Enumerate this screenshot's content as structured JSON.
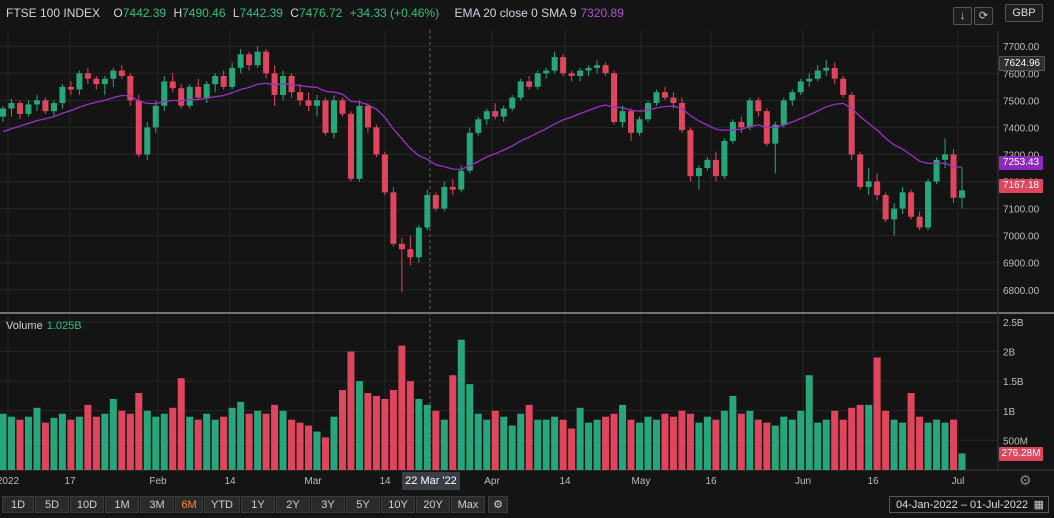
{
  "legend": {
    "symbol": "FTSE 100 INDEX",
    "o_label": "O",
    "o_value": "7442.39",
    "h_label": "H",
    "h_value": "7490.46",
    "l_label": "L",
    "l_value": "7442.39",
    "c_label": "C",
    "c_value": "7476.72",
    "change": "+34.33 (+0.46%)",
    "indicator_label": "EMA 20 close 0 SMA 9",
    "indicator_value": "7320.89"
  },
  "volume_legend": {
    "label": "Volume",
    "value": "1.025B"
  },
  "toolbar": {
    "download_icon": "↓",
    "refresh_icon": "⟳",
    "currency": "GBP"
  },
  "price_tags": {
    "last": "7624.96",
    "ema": "7253.43",
    "close": "7167.18",
    "volume": "276.28M"
  },
  "crosshair_date": "22 Mar '22",
  "range_buttons": [
    "1D",
    "5D",
    "10D",
    "1M",
    "3M",
    "6M",
    "YTD",
    "1Y",
    "2Y",
    "3Y",
    "5Y",
    "10Y",
    "20Y",
    "Max"
  ],
  "active_range": "6M",
  "settings_icon": "⚙",
  "date_range": {
    "text": "04-Jan-2022  –  01-Jul-2022",
    "calendar_icon": "▦"
  },
  "colors": {
    "up": "#26a67a",
    "down": "#e0455e",
    "ema": "#9b30c8",
    "grid": "#262626",
    "bg": "#141414"
  },
  "chart_data": {
    "type": "candlestick",
    "price_axis": {
      "ticks": [
        "7700.00",
        "7600.00",
        "7500.00",
        "7400.00",
        "7300.00",
        "7200.00",
        "7100.00",
        "7000.00",
        "6900.00",
        "6800.00"
      ],
      "ylim": [
        6740,
        7760
      ]
    },
    "volume_axis": {
      "ticks": [
        "2.5B",
        "2B",
        "1.5B",
        "1B",
        "500M"
      ],
      "ylim": [
        0,
        2.6
      ]
    },
    "x_ticks": [
      "2022",
      "17",
      "Feb",
      "14",
      "Mar",
      "14",
      "Apr",
      "14",
      "May",
      "16",
      "Jun",
      "16",
      "Jul"
    ],
    "candles": [
      [
        7440,
        7480,
        7420,
        7470,
        0.95
      ],
      [
        7470,
        7505,
        7440,
        7490,
        0.9
      ],
      [
        7490,
        7500,
        7430,
        7450,
        0.85
      ],
      [
        7450,
        7500,
        7440,
        7485,
        0.9
      ],
      [
        7485,
        7520,
        7460,
        7500,
        1.05
      ],
      [
        7500,
        7510,
        7450,
        7460,
        0.8
      ],
      [
        7460,
        7500,
        7440,
        7490,
        0.88
      ],
      [
        7490,
        7560,
        7470,
        7550,
        0.95
      ],
      [
        7550,
        7570,
        7520,
        7540,
        0.85
      ],
      [
        7540,
        7610,
        7520,
        7600,
        0.9
      ],
      [
        7600,
        7620,
        7560,
        7580,
        1.1
      ],
      [
        7580,
        7590,
        7540,
        7560,
        0.9
      ],
      [
        7560,
        7590,
        7520,
        7580,
        0.95
      ],
      [
        7580,
        7620,
        7550,
        7610,
        1.2
      ],
      [
        7610,
        7630,
        7580,
        7590,
        1.0
      ],
      [
        7590,
        7600,
        7480,
        7500,
        0.95
      ],
      [
        7500,
        7520,
        7290,
        7300,
        1.3
      ],
      [
        7300,
        7420,
        7280,
        7400,
        1.0
      ],
      [
        7400,
        7500,
        7380,
        7480,
        0.9
      ],
      [
        7480,
        7590,
        7460,
        7570,
        0.95
      ],
      [
        7570,
        7600,
        7530,
        7545,
        1.05
      ],
      [
        7545,
        7560,
        7470,
        7480,
        1.55
      ],
      [
        7480,
        7560,
        7470,
        7550,
        0.9
      ],
      [
        7550,
        7580,
        7500,
        7510,
        0.85
      ],
      [
        7510,
        7570,
        7490,
        7560,
        0.95
      ],
      [
        7560,
        7600,
        7530,
        7590,
        0.85
      ],
      [
        7590,
        7610,
        7540,
        7550,
        0.9
      ],
      [
        7550,
        7640,
        7540,
        7620,
        1.05
      ],
      [
        7620,
        7690,
        7600,
        7670,
        1.15
      ],
      [
        7670,
        7680,
        7610,
        7630,
        0.95
      ],
      [
        7630,
        7700,
        7620,
        7680,
        1.0
      ],
      [
        7680,
        7690,
        7580,
        7600,
        0.95
      ],
      [
        7600,
        7630,
        7480,
        7520,
        1.1
      ],
      [
        7520,
        7610,
        7500,
        7590,
        1.0
      ],
      [
        7590,
        7600,
        7510,
        7530,
        0.85
      ],
      [
        7530,
        7560,
        7480,
        7500,
        0.8
      ],
      [
        7500,
        7530,
        7460,
        7480,
        0.75
      ],
      [
        7480,
        7520,
        7440,
        7500,
        0.65
      ],
      [
        7500,
        7510,
        7370,
        7380,
        0.55
      ],
      [
        7380,
        7520,
        7360,
        7500,
        0.9
      ],
      [
        7500,
        7510,
        7440,
        7450,
        1.35
      ],
      [
        7450,
        7460,
        7200,
        7210,
        2.0
      ],
      [
        7210,
        7500,
        7200,
        7480,
        1.5
      ],
      [
        7480,
        7490,
        7380,
        7400,
        1.3
      ],
      [
        7400,
        7410,
        7290,
        7300,
        1.25
      ],
      [
        7300,
        7310,
        7150,
        7160,
        1.2
      ],
      [
        7160,
        7180,
        6960,
        6970,
        1.35
      ],
      [
        6970,
        6990,
        6790,
        6950,
        2.1
      ],
      [
        6950,
        7000,
        6890,
        6920,
        1.5
      ],
      [
        6920,
        7040,
        6900,
        7030,
        1.2
      ],
      [
        7030,
        7170,
        7020,
        7150,
        1.1
      ],
      [
        7150,
        7160,
        7090,
        7100,
        1.0
      ],
      [
        7100,
        7200,
        7090,
        7180,
        0.85
      ],
      [
        7180,
        7210,
        7150,
        7170,
        1.6
      ],
      [
        7170,
        7260,
        7160,
        7240,
        2.2
      ],
      [
        7240,
        7400,
        7230,
        7380,
        1.45
      ],
      [
        7380,
        7440,
        7370,
        7430,
        0.95
      ],
      [
        7430,
        7470,
        7410,
        7460,
        0.85
      ],
      [
        7460,
        7490,
        7430,
        7440,
        1.0
      ],
      [
        7440,
        7480,
        7420,
        7470,
        0.9
      ],
      [
        7470,
        7520,
        7460,
        7510,
        0.75
      ],
      [
        7510,
        7580,
        7500,
        7570,
        0.95
      ],
      [
        7570,
        7590,
        7540,
        7550,
        1.1
      ],
      [
        7550,
        7610,
        7540,
        7600,
        0.85
      ],
      [
        7600,
        7620,
        7580,
        7610,
        0.85
      ],
      [
        7610,
        7680,
        7600,
        7660,
        0.9
      ],
      [
        7660,
        7670,
        7590,
        7600,
        0.85
      ],
      [
        7600,
        7610,
        7570,
        7590,
        0.7
      ],
      [
        7590,
        7620,
        7570,
        7610,
        1.05
      ],
      [
        7610,
        7630,
        7590,
        7620,
        0.8
      ],
      [
        7620,
        7650,
        7600,
        7630,
        0.85
      ],
      [
        7630,
        7640,
        7590,
        7600,
        0.9
      ],
      [
        7600,
        7610,
        7410,
        7420,
        0.95
      ],
      [
        7420,
        7480,
        7400,
        7460,
        1.1
      ],
      [
        7460,
        7470,
        7350,
        7380,
        0.85
      ],
      [
        7380,
        7440,
        7370,
        7430,
        0.8
      ],
      [
        7430,
        7500,
        7420,
        7490,
        0.9
      ],
      [
        7490,
        7540,
        7480,
        7530,
        0.85
      ],
      [
        7530,
        7550,
        7500,
        7510,
        0.95
      ],
      [
        7510,
        7530,
        7470,
        7490,
        0.9
      ],
      [
        7490,
        7510,
        7380,
        7390,
        1.0
      ],
      [
        7390,
        7400,
        7200,
        7220,
        0.95
      ],
      [
        7220,
        7260,
        7170,
        7250,
        0.8
      ],
      [
        7250,
        7290,
        7240,
        7280,
        0.9
      ],
      [
        7280,
        7310,
        7200,
        7220,
        0.85
      ],
      [
        7220,
        7360,
        7210,
        7350,
        1.0
      ],
      [
        7350,
        7430,
        7340,
        7420,
        1.25
      ],
      [
        7420,
        7440,
        7380,
        7400,
        0.95
      ],
      [
        7400,
        7510,
        7390,
        7500,
        1.0
      ],
      [
        7500,
        7510,
        7440,
        7460,
        0.85
      ],
      [
        7460,
        7470,
        7330,
        7340,
        0.8
      ],
      [
        7340,
        7420,
        7230,
        7410,
        0.75
      ],
      [
        7410,
        7510,
        7400,
        7500,
        0.9
      ],
      [
        7500,
        7540,
        7480,
        7530,
        0.85
      ],
      [
        7530,
        7580,
        7520,
        7570,
        1.0
      ],
      [
        7570,
        7600,
        7550,
        7580,
        1.6
      ],
      [
        7580,
        7630,
        7570,
        7610,
        0.8
      ],
      [
        7610,
        7650,
        7590,
        7620,
        0.85
      ],
      [
        7620,
        7640,
        7560,
        7580,
        1.0
      ],
      [
        7580,
        7590,
        7510,
        7520,
        0.85
      ],
      [
        7520,
        7530,
        7280,
        7300,
        1.05
      ],
      [
        7300,
        7310,
        7170,
        7180,
        1.1
      ],
      [
        7180,
        7250,
        7150,
        7200,
        1.1
      ],
      [
        7200,
        7230,
        7130,
        7150,
        1.9
      ],
      [
        7150,
        7160,
        7050,
        7060,
        1.0
      ],
      [
        7060,
        7120,
        7000,
        7100,
        0.85
      ],
      [
        7100,
        7180,
        7080,
        7160,
        0.8
      ],
      [
        7160,
        7170,
        7060,
        7070,
        1.3
      ],
      [
        7070,
        7090,
        7020,
        7030,
        0.9
      ],
      [
        7030,
        7210,
        7020,
        7200,
        0.8
      ],
      [
        7200,
        7290,
        7190,
        7280,
        0.85
      ],
      [
        7280,
        7360,
        7250,
        7300,
        0.8
      ],
      [
        7300,
        7320,
        7120,
        7140,
        0.85
      ],
      [
        7140,
        7250,
        7100,
        7167.18,
        0.28
      ]
    ],
    "ema": [
      7385,
      7395,
      7405,
      7415,
      7425,
      7432,
      7440,
      7452,
      7462,
      7475,
      7485,
      7493,
      7500,
      7510,
      7518,
      7517,
      7497,
      7489,
      7488,
      7495,
      7500,
      7498,
      7502,
      7503,
      7508,
      7514,
      7518,
      7528,
      7540,
      7548,
      7560,
      7563,
      7558,
      7561,
      7558,
      7555,
      7550,
      7548,
      7533,
      7530,
      7523,
      7496,
      7494,
      7484,
      7467,
      7437,
      7394,
      7358,
      7322,
      7295,
      7282,
      7262,
      7255,
      7246,
      7245,
      7259,
      7274,
      7291,
      7303,
      7316,
      7331,
      7350,
      7364,
      7380,
      7395,
      7413,
      7428,
      7438,
      7451,
      7463,
      7475,
      7483,
      7475,
      7473,
      7463,
      7460,
      7464,
      7472,
      7477,
      7479,
      7470,
      7444,
      7424,
      7409,
      7393,
      7389,
      7392,
      7393,
      7403,
      7409,
      7400,
      7400,
      7409,
      7420,
      7433,
      7446,
      7461,
      7476,
      7485,
      7489,
      7470,
      7440,
      7415,
      7390,
      7360,
      7335,
      7320,
      7298,
      7275,
      7267,
      7267,
      7268,
      7254,
      7253
    ]
  }
}
